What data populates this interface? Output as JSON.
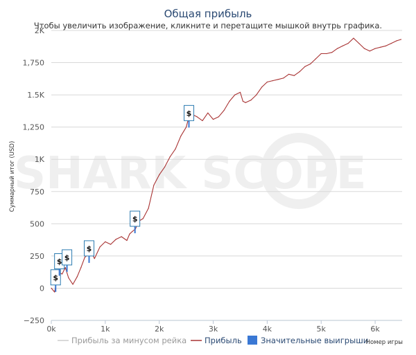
{
  "watermark": "SHARK SCOPE",
  "chart_data": {
    "type": "line",
    "title": "Общая прибыль",
    "subtitle": "Чтобы увеличить изображение, кликните и перетащите мышкой внутрь графика.",
    "xlabel": "Номер игры",
    "ylabel": "Суммарный итог (USD)",
    "xlim": [
      0,
      6500
    ],
    "ylim": [
      -250,
      2000
    ],
    "x_ticks": [
      {
        "value": 0,
        "label": "0k"
      },
      {
        "value": 1000,
        "label": "1k"
      },
      {
        "value": 2000,
        "label": "2k"
      },
      {
        "value": 3000,
        "label": "3k"
      },
      {
        "value": 4000,
        "label": "4k"
      },
      {
        "value": 5000,
        "label": "5k"
      },
      {
        "value": 6000,
        "label": "6k"
      }
    ],
    "y_ticks": [
      {
        "value": -250,
        "label": "−250"
      },
      {
        "value": 0,
        "label": "0"
      },
      {
        "value": 250,
        "label": "250"
      },
      {
        "value": 500,
        "label": "500"
      },
      {
        "value": 750,
        "label": "750"
      },
      {
        "value": 1000,
        "label": "1K"
      },
      {
        "value": 1250,
        "label": "1,250"
      },
      {
        "value": 1500,
        "label": "1.5K"
      },
      {
        "value": 1750,
        "label": "1,750"
      },
      {
        "value": 2000,
        "label": "2K"
      }
    ],
    "legend": {
      "placement": "bottom",
      "items": [
        {
          "label": "Прибыль за минусом рейка",
          "color": "#cccccc",
          "symbol": "line"
        },
        {
          "label": "Прибыль",
          "color": "#a83232",
          "symbol": "line"
        },
        {
          "label": "Значительные выигрыши",
          "color": "#3a78d4",
          "symbol": "box"
        }
      ]
    },
    "series": [
      {
        "name": "Прибыль",
        "color": "#a83232",
        "x": [
          0,
          60,
          100,
          150,
          200,
          260,
          320,
          400,
          480,
          550,
          620,
          680,
          740,
          800,
          900,
          1000,
          1100,
          1200,
          1300,
          1400,
          1450,
          1500,
          1560,
          1620,
          1700,
          1800,
          1900,
          2000,
          2100,
          2200,
          2300,
          2400,
          2500,
          2550,
          2600,
          2700,
          2800,
          2900,
          3000,
          3100,
          3200,
          3300,
          3400,
          3500,
          3550,
          3600,
          3700,
          3800,
          3900,
          4000,
          4100,
          4200,
          4300,
          4400,
          4500,
          4600,
          4700,
          4800,
          4900,
          5000,
          5100,
          5200,
          5300,
          5400,
          5500,
          5600,
          5700,
          5800,
          5900,
          6000,
          6100,
          6200,
          6300,
          6400,
          6480
        ],
        "values": [
          0,
          -30,
          60,
          120,
          110,
          160,
          80,
          30,
          90,
          160,
          240,
          260,
          280,
          230,
          320,
          360,
          340,
          380,
          400,
          370,
          420,
          440,
          460,
          520,
          540,
          620,
          800,
          880,
          940,
          1020,
          1080,
          1180,
          1250,
          1330,
          1350,
          1330,
          1300,
          1360,
          1310,
          1330,
          1380,
          1450,
          1500,
          1520,
          1450,
          1440,
          1460,
          1500,
          1560,
          1600,
          1610,
          1620,
          1630,
          1660,
          1650,
          1680,
          1720,
          1740,
          1780,
          1820,
          1820,
          1830,
          1860,
          1880,
          1900,
          1940,
          1900,
          1860,
          1840,
          1860,
          1870,
          1880,
          1900,
          1920,
          1930
        ]
      }
    ],
    "significant_wins": [
      {
        "x": 80,
        "y": 25,
        "label": "$"
      },
      {
        "x": 150,
        "y": 150,
        "label": "$"
      },
      {
        "x": 290,
        "y": 180,
        "label": "$"
      },
      {
        "x": 700,
        "y": 250,
        "label": "$"
      },
      {
        "x": 1550,
        "y": 480,
        "label": "$"
      },
      {
        "x": 2550,
        "y": 1300,
        "label": "$"
      }
    ]
  }
}
